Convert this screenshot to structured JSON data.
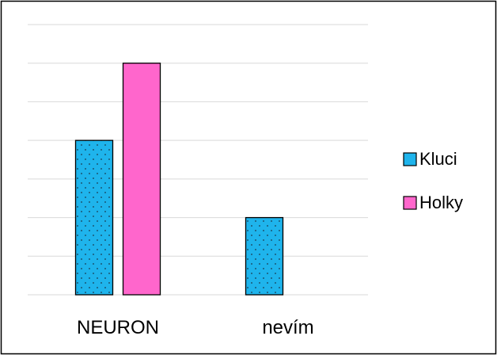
{
  "chart_data": {
    "type": "bar",
    "categories": [
      "NEURON",
      "nevím"
    ],
    "series": [
      {
        "name": "Kluci",
        "values": [
          4,
          2
        ],
        "color": "#1fb4ec",
        "pattern": "dotted"
      },
      {
        "name": "Holky",
        "values": [
          6,
          0
        ],
        "color": "#ff66cc"
      }
    ],
    "ylim": [
      0,
      7
    ],
    "grid": true,
    "legend": "right"
  }
}
